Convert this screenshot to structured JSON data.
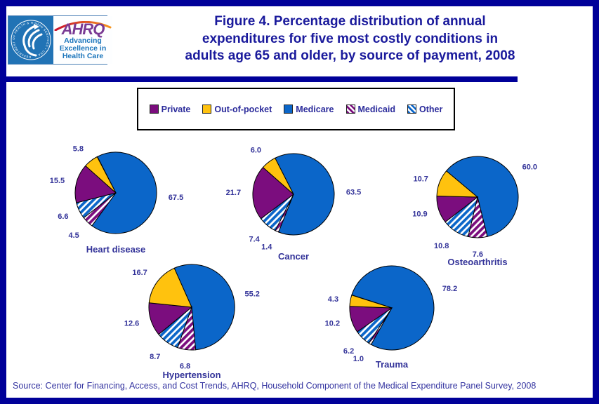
{
  "header": {
    "logo": {
      "org": "AHRQ",
      "tagline_lines": [
        "Advancing",
        "Excellence in",
        "Health Care"
      ],
      "seal_text": "DEPARTMENT OF HEALTH & HUMAN SERVICES • USA"
    },
    "title_lines": [
      "Figure 4. Percentage distribution of annual",
      "expenditures for five most costly conditions in",
      "adults age 65 and older, by source of payment, 2008"
    ]
  },
  "legend": {
    "items": [
      {
        "label": "Private"
      },
      {
        "label": "Out-of-pocket"
      },
      {
        "label": "Medicare"
      },
      {
        "label": "Medicaid"
      },
      {
        "label": "Other"
      }
    ]
  },
  "series_styles": {
    "Private": {
      "color": "#7B0D7E",
      "pattern": "solid"
    },
    "Out-of-pocket": {
      "color": "#FFC20E",
      "pattern": "solid"
    },
    "Medicare": {
      "color": "#0B66C9",
      "pattern": "solid"
    },
    "Medicaid": {
      "color": "#7B0D7E",
      "pattern": "hatch"
    },
    "Other": {
      "color": "#0B66C9",
      "pattern": "hatch"
    }
  },
  "chart_data": [
    {
      "type": "pie",
      "title": "Heart disease",
      "start_angle_deg": -27,
      "slices": [
        {
          "name": "Medicare",
          "value": 67.5
        },
        {
          "name": "Medicaid",
          "value": 4.5
        },
        {
          "name": "Other",
          "value": 6.6
        },
        {
          "name": "Private",
          "value": 15.5
        },
        {
          "name": "Out-of-pocket",
          "value": 5.8
        }
      ]
    },
    {
      "type": "pie",
      "title": "Cancer",
      "start_angle_deg": -27,
      "slices": [
        {
          "name": "Medicare",
          "value": 63.5
        },
        {
          "name": "Medicaid",
          "value": 1.4
        },
        {
          "name": "Other",
          "value": 7.4
        },
        {
          "name": "Private",
          "value": 21.7
        },
        {
          "name": "Out-of-pocket",
          "value": 6.0
        }
      ]
    },
    {
      "type": "pie",
      "title": "Osteoarthritis",
      "start_angle_deg": -50,
      "slices": [
        {
          "name": "Medicare",
          "value": 60.0
        },
        {
          "name": "Medicaid",
          "value": 7.6
        },
        {
          "name": "Other",
          "value": 10.8
        },
        {
          "name": "Private",
          "value": 10.9
        },
        {
          "name": "Out-of-pocket",
          "value": 10.7
        }
      ]
    },
    {
      "type": "pie",
      "title": "Hypertension",
      "start_angle_deg": -24,
      "slices": [
        {
          "name": "Medicare",
          "value": 55.2
        },
        {
          "name": "Medicaid",
          "value": 6.8
        },
        {
          "name": "Other",
          "value": 8.7
        },
        {
          "name": "Private",
          "value": 12.6
        },
        {
          "name": "Out-of-pocket",
          "value": 16.7
        }
      ]
    },
    {
      "type": "pie",
      "title": "Trauma",
      "start_angle_deg": -72,
      "slices": [
        {
          "name": "Medicare",
          "value": 78.2
        },
        {
          "name": "Medicaid",
          "value": 1.0
        },
        {
          "name": "Other",
          "value": 6.2
        },
        {
          "name": "Private",
          "value": 10.2
        },
        {
          "name": "Out-of-pocket",
          "value": 4.3
        }
      ]
    }
  ],
  "source": "Source: Center for Financing, Access, and Cost Trends, AHRQ, Household Component of the Medical Expenditure Panel Survey, 2008",
  "colors": {
    "frame_navy": "#000099",
    "title_text": "#1A1A9C",
    "label_text": "#333399",
    "medicare_blue": "#0B66C9",
    "private_purple": "#7B0D7E",
    "out_of_pocket_yellow": "#FFC20E",
    "seal_blue": "#2173B5",
    "ahrq_purple": "#7A3A94",
    "tagline_blue": "#1B75BB"
  }
}
